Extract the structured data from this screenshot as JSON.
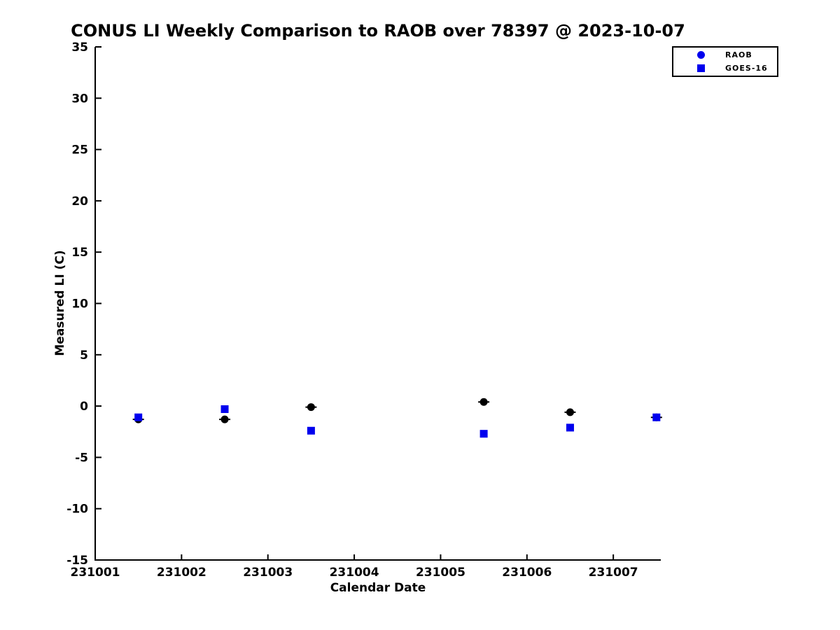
{
  "page": {
    "background": "#ffffff"
  },
  "chart_data": {
    "type": "scatter",
    "title": "CONUS LI Weekly Comparison to RAOB over 78397 @ 2023-10-07",
    "xlabel": "Calendar Date",
    "ylabel": "Measured LI (C)",
    "xlim": [
      231001,
      231007.55
    ],
    "ylim": [
      -15,
      35
    ],
    "x_tick_values": [
      231001,
      231002,
      231003,
      231004,
      231005,
      231006,
      231007
    ],
    "x_tick_labels": [
      "231001",
      "231002",
      "231003",
      "231004",
      "231005",
      "231006",
      "231007"
    ],
    "y_ticks": [
      35,
      30,
      25,
      20,
      15,
      10,
      5,
      0,
      -5,
      -10,
      -15
    ],
    "grid": false,
    "axis_color": "#000000",
    "legend": {
      "position": "upper right",
      "border_color": "#000000",
      "background": "#ffffff"
    },
    "series": [
      {
        "name": "RAOB",
        "marker": "circle",
        "plot_color": "#000000",
        "legend_marker_color": "#0000ee",
        "errorbar_caps": true,
        "x": [
          231001.5,
          231002.5,
          231003.5,
          231005.5,
          231006.5,
          231007.5
        ],
        "y": [
          -1.3,
          -1.3,
          -0.1,
          0.4,
          -0.6,
          -1.1
        ]
      },
      {
        "name": "GOES-16",
        "marker": "square",
        "plot_color": "#0000ee",
        "legend_marker_color": "#0000ee",
        "errorbar_caps": false,
        "x": [
          231001.5,
          231002.5,
          231003.5,
          231005.5,
          231006.5,
          231007.5
        ],
        "y": [
          -1.1,
          -0.3,
          -2.4,
          -2.7,
          -2.1,
          -1.1
        ]
      }
    ]
  }
}
